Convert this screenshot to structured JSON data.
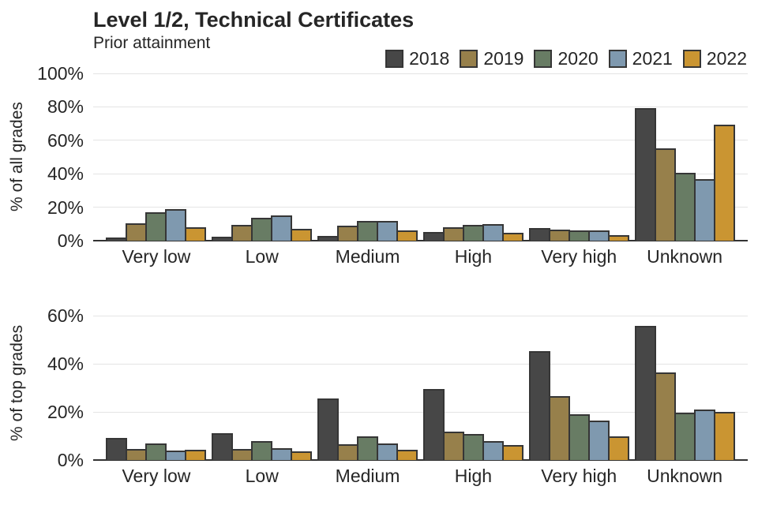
{
  "title": "Level 1/2, Technical Certificates",
  "subtitle": "Prior attainment",
  "legend": {
    "entries": [
      "2018",
      "2019",
      "2020",
      "2021",
      "2022"
    ]
  },
  "colors": {
    "2018": "#474747",
    "2019": "#97804b",
    "2020": "#687c64",
    "2021": "#7f99af",
    "2022": "#ca9532",
    "bar_border": "#363636",
    "gridline": "#e4e4e4",
    "axis_line": "#333333",
    "text": "#262626"
  },
  "chart_data": [
    {
      "type": "bar",
      "title": "Level 1/2, Technical Certificates",
      "subtitle": "Prior attainment",
      "ylabel": "% of all grades",
      "xlabel": "",
      "ylim": [
        0,
        100
      ],
      "yticks": [
        0,
        20,
        40,
        60,
        80,
        100
      ],
      "ytick_format": "percent",
      "grid": true,
      "legend_position": "top-right",
      "categories": [
        "Very low",
        "Low",
        "Medium",
        "High",
        "Very high",
        "Unknown"
      ],
      "series": [
        {
          "name": "2018",
          "color": "#474747",
          "values": [
            1.8,
            2.3,
            3.0,
            5.2,
            7.4,
            79.4
          ]
        },
        {
          "name": "2019",
          "color": "#97804b",
          "values": [
            10.2,
            9.2,
            8.9,
            8.0,
            6.6,
            55.3
          ]
        },
        {
          "name": "2020",
          "color": "#687c64",
          "values": [
            17.1,
            13.8,
            11.9,
            9.5,
            5.9,
            40.5
          ]
        },
        {
          "name": "2021",
          "color": "#7f99af",
          "values": [
            19.0,
            15.2,
            11.9,
            9.9,
            6.3,
            36.8
          ]
        },
        {
          "name": "2022",
          "color": "#ca9532",
          "values": [
            8.1,
            7.0,
            5.9,
            4.7,
            3.4,
            69.4
          ]
        }
      ]
    },
    {
      "type": "bar",
      "ylabel": "% of top grades",
      "xlabel": "",
      "ylim": [
        0,
        64
      ],
      "yticks": [
        0,
        20,
        40,
        60
      ],
      "ytick_format": "percent",
      "grid": true,
      "categories": [
        "Very low",
        "Low",
        "Medium",
        "High",
        "Very high",
        "Unknown"
      ],
      "series": [
        {
          "name": "2018",
          "color": "#474747",
          "values": [
            9.2,
            11.1,
            25.6,
            29.5,
            45.2,
            55.7
          ]
        },
        {
          "name": "2019",
          "color": "#97804b",
          "values": [
            4.5,
            4.7,
            6.6,
            11.8,
            26.6,
            36.4
          ]
        },
        {
          "name": "2020",
          "color": "#687c64",
          "values": [
            6.9,
            7.8,
            9.8,
            10.8,
            19.0,
            19.7
          ]
        },
        {
          "name": "2021",
          "color": "#7f99af",
          "values": [
            4.1,
            4.8,
            6.9,
            7.9,
            16.4,
            20.9
          ]
        },
        {
          "name": "2022",
          "color": "#ca9532",
          "values": [
            4.2,
            3.7,
            4.3,
            6.2,
            9.8,
            20.0
          ]
        }
      ]
    }
  ]
}
